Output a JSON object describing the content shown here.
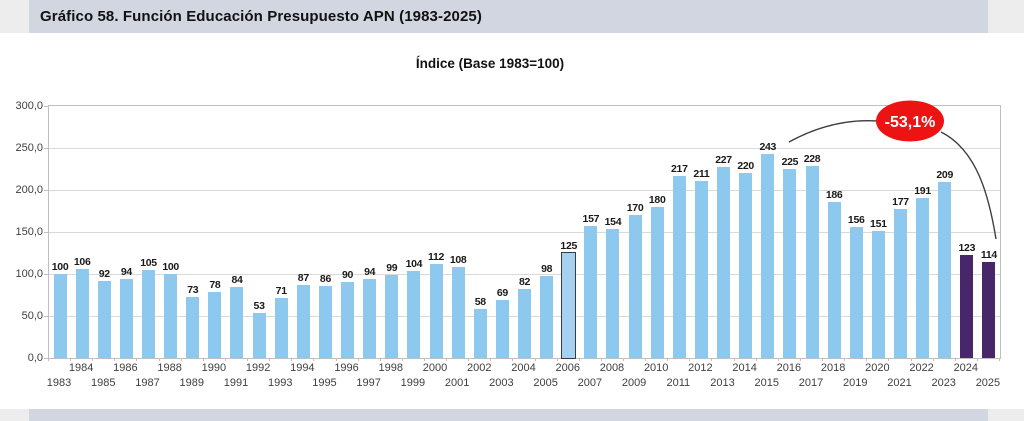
{
  "header": {
    "title": "Gráfico 58. Función Educación Presupuesto APN (1983-2025)"
  },
  "chart_data": {
    "type": "bar",
    "title": "Índice (Base 1983=100)",
    "categories": [
      "1983",
      "1984",
      "1985",
      "1986",
      "1987",
      "1988",
      "1989",
      "1990",
      "1991",
      "1992",
      "1993",
      "1994",
      "1995",
      "1996",
      "1997",
      "1998",
      "1999",
      "2000",
      "2001",
      "2002",
      "2003",
      "2004",
      "2005",
      "2006",
      "2007",
      "2008",
      "2009",
      "2010",
      "2011",
      "2012",
      "2013",
      "2014",
      "2015",
      "2016",
      "2017",
      "2018",
      "2019",
      "2020",
      "2021",
      "2022",
      "2023",
      "2024",
      "2025"
    ],
    "values": [
      100,
      106,
      92,
      94,
      105,
      100,
      73,
      78,
      84,
      53,
      71,
      87,
      86,
      90,
      94,
      99,
      104,
      112,
      108,
      58,
      69,
      82,
      98,
      125,
      157,
      154,
      170,
      180,
      217,
      211,
      227,
      220,
      243,
      225,
      228,
      186,
      156,
      151,
      177,
      191,
      209,
      123,
      114
    ],
    "ylim": [
      0,
      300
    ],
    "ytick_step": 50,
    "ytick_labels": [
      "0,0",
      "50,0",
      "100,0",
      "150,0",
      "200,0",
      "250,0",
      "300,0"
    ],
    "grid": true,
    "legend": false,
    "xlabel": "",
    "ylabel": "",
    "highlight_category": "2006",
    "dark_categories": [
      "2024",
      "2025"
    ],
    "annotation": {
      "text": "-53,1%",
      "fill": "#EC1313",
      "text_color": "#FFFFFF",
      "from_value_label": "243",
      "to_value_label": "114"
    },
    "colors": {
      "bar": "#8DC9EF",
      "bar_dark": "#472769",
      "highlight_border": "#3A3A3A",
      "grid": "#D9D9D9",
      "plot_border": "#BFBFBF",
      "axis_text": "#3F3F3F",
      "value_label": "#1A1A1A",
      "title_band_bg": "#D1D6E0",
      "page_edge_bg": "#EDEDED",
      "annotation_line": "#3F3F3F"
    }
  }
}
